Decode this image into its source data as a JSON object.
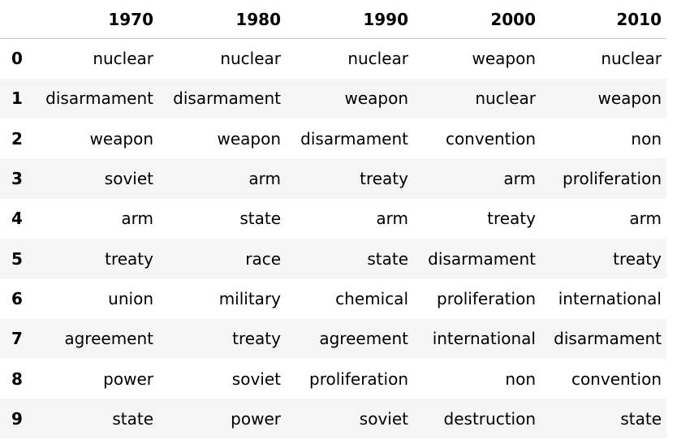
{
  "table": {
    "columns": [
      "1970",
      "1980",
      "1990",
      "2000",
      "2010"
    ],
    "rows": [
      {
        "index": "0",
        "cells": [
          "nuclear",
          "nuclear",
          "nuclear",
          "weapon",
          "nuclear"
        ]
      },
      {
        "index": "1",
        "cells": [
          "disarmament",
          "disarmament",
          "weapon",
          "nuclear",
          "weapon"
        ]
      },
      {
        "index": "2",
        "cells": [
          "weapon",
          "weapon",
          "disarmament",
          "convention",
          "non"
        ]
      },
      {
        "index": "3",
        "cells": [
          "soviet",
          "arm",
          "treaty",
          "arm",
          "proliferation"
        ]
      },
      {
        "index": "4",
        "cells": [
          "arm",
          "state",
          "arm",
          "treaty",
          "arm"
        ]
      },
      {
        "index": "5",
        "cells": [
          "treaty",
          "race",
          "state",
          "disarmament",
          "treaty"
        ]
      },
      {
        "index": "6",
        "cells": [
          "union",
          "military",
          "chemical",
          "proliferation",
          "international"
        ]
      },
      {
        "index": "7",
        "cells": [
          "agreement",
          "treaty",
          "agreement",
          "international",
          "disarmament"
        ]
      },
      {
        "index": "8",
        "cells": [
          "power",
          "soviet",
          "proliferation",
          "non",
          "convention"
        ]
      },
      {
        "index": "9",
        "cells": [
          "state",
          "power",
          "soviet",
          "destruction",
          "state"
        ]
      }
    ]
  }
}
